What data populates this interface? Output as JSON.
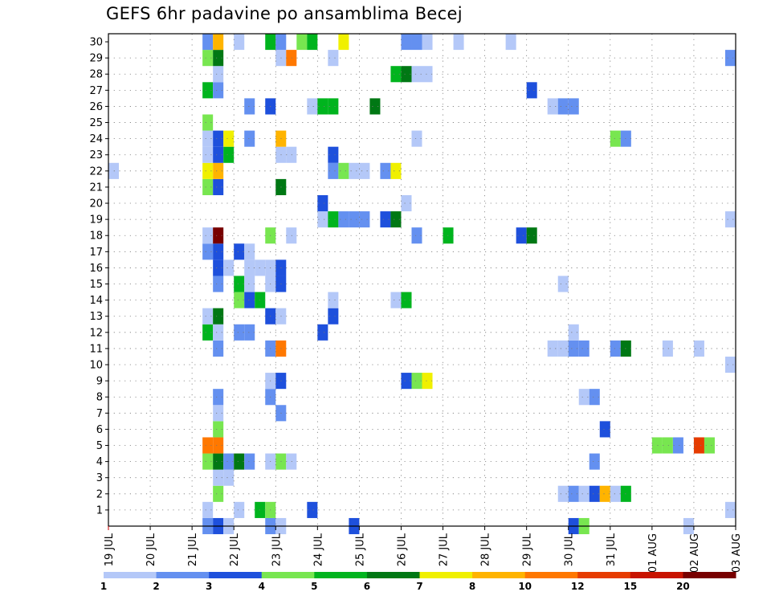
{
  "title": "GEFS 6hr padavine po ansamblima Becej",
  "chart_data": {
    "type": "heatmap",
    "title": "GEFS 6hr padavine po ansamblima Becej",
    "x_tick_labels": [
      "19 JUL",
      "20 JUL",
      "21 JUL",
      "22 JUL",
      "23 JUL",
      "24 JUL",
      "25 JUL",
      "26 JUL",
      "27 JUL",
      "28 JUL",
      "29 JUL",
      "30 JUL",
      "31 JUL",
      "01 AUG",
      "02 AUG",
      "03 AUG"
    ],
    "y_tick_labels": [
      "1",
      "2",
      "3",
      "4",
      "5",
      "6",
      "7",
      "8",
      "9",
      "10",
      "11",
      "12",
      "13",
      "14",
      "15",
      "16",
      "17",
      "18",
      "19",
      "20",
      "21",
      "22",
      "23",
      "24",
      "25",
      "26",
      "27",
      "28",
      "29",
      "30"
    ],
    "x_range_days": [
      0,
      15
    ],
    "y_range": [
      0,
      30
    ],
    "grid": true,
    "legend": {
      "placement": "bottom",
      "levels": [
        "1",
        "2",
        "3",
        "4",
        "5",
        "6",
        "7",
        "8",
        "10",
        "12",
        "15",
        "20"
      ],
      "colors": [
        "#b4c8f8",
        "#6490f0",
        "#1e50dc",
        "#78e650",
        "#00b41e",
        "#007814",
        "#f0f000",
        "#ffb400",
        "#ff7800",
        "#e63c00",
        "#c81400",
        "#780000"
      ]
    },
    "cell_width_hours": 6,
    "value_units": "legend class index (1-12)",
    "cells": [
      [
        2.25,
        0,
        2
      ],
      [
        2.5,
        0,
        3
      ],
      [
        2.75,
        0,
        1
      ],
      [
        3.75,
        0,
        2
      ],
      [
        4.0,
        0,
        1
      ],
      [
        5.75,
        0,
        3
      ],
      [
        11.0,
        0,
        3
      ],
      [
        11.25,
        0,
        4
      ],
      [
        13.75,
        0,
        1
      ],
      [
        2.25,
        1,
        1
      ],
      [
        3.0,
        1,
        1
      ],
      [
        3.5,
        1,
        5
      ],
      [
        3.75,
        1,
        4
      ],
      [
        4.75,
        1,
        3
      ],
      [
        14.75,
        1,
        1
      ],
      [
        2.5,
        2,
        4
      ],
      [
        10.75,
        2,
        1
      ],
      [
        11.0,
        2,
        2
      ],
      [
        11.25,
        2,
        1
      ],
      [
        11.5,
        2,
        3
      ],
      [
        11.75,
        2,
        8
      ],
      [
        12.0,
        2,
        1
      ],
      [
        12.25,
        2,
        5
      ],
      [
        2.5,
        3,
        1
      ],
      [
        2.75,
        3,
        1
      ],
      [
        2.25,
        4,
        4
      ],
      [
        2.5,
        4,
        6
      ],
      [
        2.75,
        4,
        2
      ],
      [
        3.0,
        4,
        6
      ],
      [
        3.25,
        4,
        2
      ],
      [
        3.75,
        4,
        1
      ],
      [
        4.0,
        4,
        4
      ],
      [
        4.25,
        4,
        1
      ],
      [
        11.5,
        4,
        2
      ],
      [
        2.25,
        5,
        9
      ],
      [
        2.5,
        5,
        9
      ],
      [
        13.0,
        5,
        4
      ],
      [
        13.25,
        5,
        4
      ],
      [
        13.5,
        5,
        2
      ],
      [
        14.0,
        5,
        10
      ],
      [
        14.25,
        5,
        4
      ],
      [
        2.5,
        6,
        4
      ],
      [
        11.75,
        6,
        3
      ],
      [
        2.5,
        7,
        1
      ],
      [
        4.0,
        7,
        2
      ],
      [
        2.5,
        8,
        2
      ],
      [
        3.75,
        8,
        2
      ],
      [
        11.25,
        8,
        1
      ],
      [
        11.5,
        8,
        2
      ],
      [
        3.75,
        9,
        1
      ],
      [
        4.0,
        9,
        3
      ],
      [
        7.0,
        9,
        3
      ],
      [
        7.25,
        9,
        4
      ],
      [
        7.5,
        9,
        7
      ],
      [
        14.75,
        10,
        1
      ],
      [
        2.5,
        11,
        2
      ],
      [
        3.75,
        11,
        2
      ],
      [
        4.0,
        11,
        9
      ],
      [
        10.5,
        11,
        1
      ],
      [
        10.75,
        11,
        1
      ],
      [
        11.0,
        11,
        2
      ],
      [
        11.25,
        11,
        2
      ],
      [
        12.0,
        11,
        2
      ],
      [
        12.25,
        11,
        6
      ],
      [
        13.25,
        11,
        1
      ],
      [
        14.0,
        11,
        1
      ],
      [
        2.25,
        12,
        5
      ],
      [
        2.5,
        12,
        1
      ],
      [
        3.0,
        12,
        2
      ],
      [
        3.25,
        12,
        2
      ],
      [
        5.0,
        12,
        3
      ],
      [
        11.0,
        12,
        1
      ],
      [
        2.25,
        13,
        1
      ],
      [
        2.5,
        13,
        6
      ],
      [
        3.75,
        13,
        3
      ],
      [
        4.0,
        13,
        1
      ],
      [
        5.25,
        13,
        3
      ],
      [
        3.0,
        14,
        4
      ],
      [
        3.25,
        14,
        3
      ],
      [
        3.5,
        14,
        5
      ],
      [
        5.25,
        14,
        1
      ],
      [
        6.75,
        14,
        1
      ],
      [
        7.0,
        14,
        5
      ],
      [
        2.5,
        15,
        2
      ],
      [
        3.0,
        15,
        5
      ],
      [
        3.25,
        15,
        1
      ],
      [
        3.75,
        15,
        1
      ],
      [
        4.0,
        15,
        3
      ],
      [
        10.75,
        15,
        1
      ],
      [
        2.5,
        16,
        3
      ],
      [
        2.75,
        16,
        1
      ],
      [
        3.25,
        16,
        1
      ],
      [
        3.5,
        16,
        1
      ],
      [
        3.75,
        16,
        1
      ],
      [
        4.0,
        16,
        3
      ],
      [
        2.25,
        17,
        2
      ],
      [
        2.5,
        17,
        3
      ],
      [
        3.0,
        17,
        3
      ],
      [
        3.25,
        17,
        1
      ],
      [
        2.25,
        18,
        1
      ],
      [
        2.5,
        18,
        12
      ],
      [
        3.75,
        18,
        4
      ],
      [
        4.25,
        18,
        1
      ],
      [
        7.25,
        18,
        2
      ],
      [
        8.0,
        18,
        5
      ],
      [
        9.75,
        18,
        3
      ],
      [
        10.0,
        18,
        6
      ],
      [
        5.0,
        19,
        1
      ],
      [
        5.25,
        19,
        5
      ],
      [
        5.5,
        19,
        2
      ],
      [
        5.75,
        19,
        2
      ],
      [
        6.0,
        19,
        2
      ],
      [
        6.5,
        19,
        3
      ],
      [
        6.75,
        19,
        6
      ],
      [
        14.75,
        19,
        1
      ],
      [
        5.0,
        20,
        3
      ],
      [
        7.0,
        20,
        1
      ],
      [
        2.25,
        21,
        4
      ],
      [
        2.5,
        21,
        3
      ],
      [
        4.0,
        21,
        6
      ],
      [
        0.0,
        22,
        1
      ],
      [
        2.25,
        22,
        7
      ],
      [
        2.5,
        22,
        8
      ],
      [
        5.25,
        22,
        2
      ],
      [
        5.5,
        22,
        4
      ],
      [
        5.75,
        22,
        1
      ],
      [
        6.0,
        22,
        1
      ],
      [
        6.5,
        22,
        2
      ],
      [
        6.75,
        22,
        7
      ],
      [
        2.25,
        23,
        1
      ],
      [
        2.5,
        23,
        3
      ],
      [
        2.75,
        23,
        5
      ],
      [
        4.0,
        23,
        1
      ],
      [
        4.25,
        23,
        1
      ],
      [
        5.25,
        23,
        3
      ],
      [
        2.25,
        24,
        1
      ],
      [
        2.5,
        24,
        3
      ],
      [
        2.75,
        24,
        7
      ],
      [
        3.25,
        24,
        2
      ],
      [
        4.0,
        24,
        8
      ],
      [
        7.25,
        24,
        1
      ],
      [
        12.0,
        24,
        4
      ],
      [
        12.25,
        24,
        2
      ],
      [
        2.25,
        25,
        4
      ],
      [
        3.25,
        26,
        2
      ],
      [
        3.75,
        26,
        3
      ],
      [
        4.75,
        26,
        1
      ],
      [
        5.0,
        26,
        5
      ],
      [
        5.25,
        26,
        5
      ],
      [
        6.25,
        26,
        6
      ],
      [
        10.5,
        26,
        1
      ],
      [
        10.75,
        26,
        2
      ],
      [
        11.0,
        26,
        2
      ],
      [
        2.25,
        27,
        5
      ],
      [
        2.5,
        27,
        2
      ],
      [
        10.0,
        27,
        3
      ],
      [
        2.5,
        28,
        1
      ],
      [
        6.75,
        28,
        5
      ],
      [
        7.0,
        28,
        6
      ],
      [
        7.25,
        28,
        1
      ],
      [
        7.5,
        28,
        1
      ],
      [
        2.25,
        29,
        4
      ],
      [
        2.5,
        29,
        6
      ],
      [
        4.0,
        29,
        1
      ],
      [
        4.25,
        29,
        9
      ],
      [
        5.25,
        29,
        1
      ],
      [
        14.75,
        29,
        2
      ],
      [
        2.25,
        30,
        2
      ],
      [
        2.5,
        30,
        8
      ],
      [
        3.0,
        30,
        1
      ],
      [
        3.75,
        30,
        5
      ],
      [
        4.0,
        30,
        2
      ],
      [
        4.5,
        30,
        4
      ],
      [
        4.75,
        30,
        5
      ],
      [
        5.5,
        30,
        7
      ],
      [
        7.0,
        30,
        2
      ],
      [
        7.25,
        30,
        2
      ],
      [
        7.5,
        30,
        1
      ],
      [
        8.25,
        30,
        1
      ],
      [
        9.5,
        30,
        1
      ]
    ]
  }
}
